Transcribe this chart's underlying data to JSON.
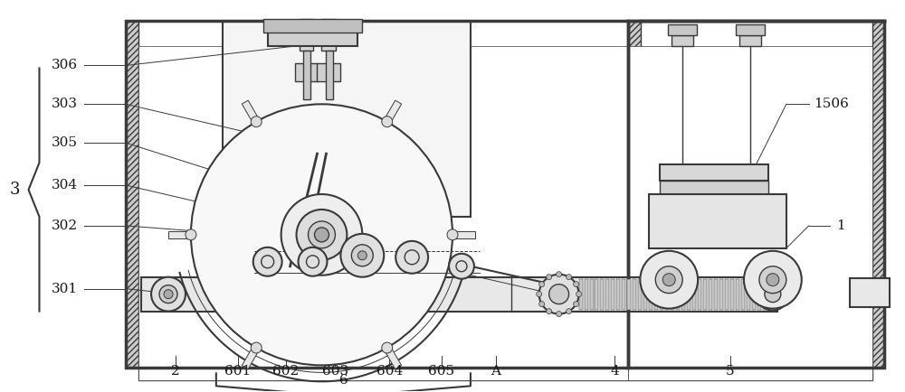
{
  "bg_color": "#ffffff",
  "lc": "#3a3a3a",
  "figsize": [
    10.0,
    4.34
  ],
  "dpi": 100,
  "font_size": 11,
  "label_color": "#1a1a1a"
}
